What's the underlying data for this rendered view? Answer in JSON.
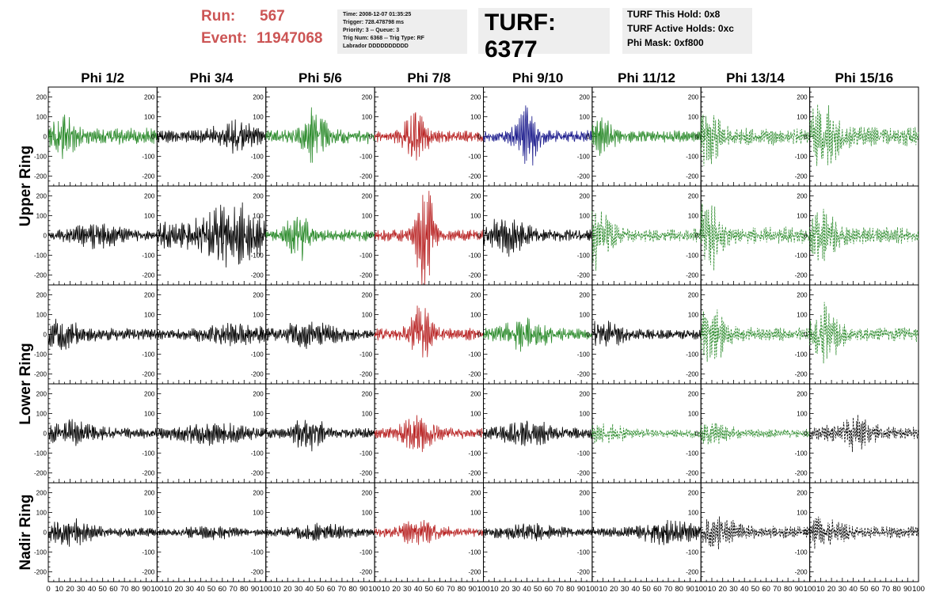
{
  "header": {
    "run_label": "Run:",
    "run_value": "567",
    "event_label": "Event:",
    "event_value": "11947068",
    "info_lines": [
      "Time: 2008-12-07 01:35:25",
      "Trigger: 728.478798 ms",
      "Priority: 3 -- Queue: 3",
      "Trig Num: 6368 -- Trig Type: RF",
      "Labrador DDDDDDDDDD"
    ],
    "turf": "TURF: 6377",
    "hold_lines": [
      "TURF This Hold: 0x8",
      "TURF Active Holds: 0xc",
      "Phi Mask: 0xf800"
    ]
  },
  "colors": {
    "red_label": "#cc5555",
    "green": "#2a8a2a",
    "black": "#000000",
    "red": "#b82222",
    "blue": "#1a1a8c"
  },
  "chart_data": {
    "type": "line",
    "title": "",
    "columns": [
      "Phi 1/2",
      "Phi 3/4",
      "Phi 5/6",
      "Phi 7/8",
      "Phi 9/10",
      "Phi 11/12",
      "Phi 13/14",
      "Phi 15/16"
    ],
    "rows": [
      "Upper Ring",
      "Lower Ring",
      "Nadir Ring"
    ],
    "xlim": [
      0,
      100
    ],
    "ylim": [
      -250,
      250
    ],
    "x_tick_labels": [
      "0",
      "10",
      "20",
      "30",
      "40",
      "50",
      "60",
      "70",
      "80",
      "90",
      "100"
    ],
    "y_tick_labels": [
      "200",
      "100",
      "0",
      "-100",
      "-200"
    ],
    "panels": [
      [
        {
          "color": "green",
          "style": "solid",
          "amplitude": 35,
          "peak_x": 15,
          "peak_amp": 70,
          "width": 10
        },
        {
          "color": "black",
          "style": "solid",
          "amplitude": 25,
          "peak_x": 70,
          "peak_amp": 45,
          "width": 20
        },
        {
          "color": "green",
          "style": "solid",
          "amplitude": 30,
          "peak_x": 45,
          "peak_amp": 95,
          "width": 10
        },
        {
          "color": "red",
          "style": "solid",
          "amplitude": 25,
          "peak_x": 38,
          "peak_amp": 110,
          "width": 10
        },
        {
          "color": "blue",
          "style": "solid",
          "amplitude": 25,
          "peak_x": 40,
          "peak_amp": 120,
          "width": 10
        },
        {
          "color": "green",
          "style": "solid",
          "amplitude": 25,
          "peak_x": 10,
          "peak_amp": 60,
          "width": 10
        },
        {
          "color": "green",
          "style": "dashed",
          "amplitude": 35,
          "peak_x": 5,
          "peak_amp": 100,
          "width": 12
        },
        {
          "color": "green",
          "style": "dashed",
          "amplitude": 40,
          "peak_x": 10,
          "peak_amp": 100,
          "width": 18
        }
      ],
      [
        {
          "color": "black",
          "style": "solid",
          "amplitude": 20,
          "peak_x": 45,
          "peak_amp": 35,
          "width": 25
        },
        {
          "color": "black",
          "style": "solid",
          "amplitude": 55,
          "peak_x": 70,
          "peak_amp": 90,
          "width": 25
        },
        {
          "color": "green",
          "style": "solid",
          "amplitude": 25,
          "peak_x": 30,
          "peak_amp": 100,
          "width": 10
        },
        {
          "color": "red",
          "style": "solid",
          "amplitude": 25,
          "peak_x": 46,
          "peak_amp": 230,
          "width": 8
        },
        {
          "color": "black",
          "style": "solid",
          "amplitude": 25,
          "peak_x": 20,
          "peak_amp": 60,
          "width": 20
        },
        {
          "color": "green",
          "style": "dashed",
          "amplitude": 30,
          "peak_x": 5,
          "peak_amp": 110,
          "width": 12
        },
        {
          "color": "green",
          "style": "dashed",
          "amplitude": 35,
          "peak_x": 5,
          "peak_amp": 150,
          "width": 12
        },
        {
          "color": "green",
          "style": "dashed",
          "amplitude": 35,
          "peak_x": 10,
          "peak_amp": 90,
          "width": 15
        }
      ],
      [
        {
          "color": "black",
          "style": "solid",
          "amplitude": 25,
          "peak_x": 10,
          "peak_amp": 40,
          "width": 20
        },
        {
          "color": "black",
          "style": "solid",
          "amplitude": 20,
          "peak_x": 70,
          "peak_amp": 30,
          "width": 30
        },
        {
          "color": "black",
          "style": "solid",
          "amplitude": 22,
          "peak_x": 40,
          "peak_amp": 35,
          "width": 30
        },
        {
          "color": "red",
          "style": "solid",
          "amplitude": 25,
          "peak_x": 42,
          "peak_amp": 110,
          "width": 10
        },
        {
          "color": "green",
          "style": "solid",
          "amplitude": 25,
          "peak_x": 40,
          "peak_amp": 50,
          "width": 20
        },
        {
          "color": "black",
          "style": "solid",
          "amplitude": 20,
          "peak_x": 10,
          "peak_amp": 40,
          "width": 20
        },
        {
          "color": "green",
          "style": "dashed",
          "amplitude": 30,
          "peak_x": 10,
          "peak_amp": 90,
          "width": 15
        },
        {
          "color": "green",
          "style": "dashed",
          "amplitude": 30,
          "peak_x": 15,
          "peak_amp": 110,
          "width": 12
        }
      ],
      [
        {
          "color": "black",
          "style": "solid",
          "amplitude": 22,
          "peak_x": 20,
          "peak_amp": 35,
          "width": 25
        },
        {
          "color": "black",
          "style": "solid",
          "amplitude": 22,
          "peak_x": 50,
          "peak_amp": 30,
          "width": 30
        },
        {
          "color": "black",
          "style": "solid",
          "amplitude": 22,
          "peak_x": 40,
          "peak_amp": 55,
          "width": 15
        },
        {
          "color": "red",
          "style": "solid",
          "amplitude": 22,
          "peak_x": 40,
          "peak_amp": 60,
          "width": 15
        },
        {
          "color": "black",
          "style": "solid",
          "amplitude": 22,
          "peak_x": 40,
          "peak_amp": 35,
          "width": 25
        },
        {
          "color": "green",
          "style": "dashed",
          "amplitude": 18,
          "peak_x": 10,
          "peak_amp": 30,
          "width": 20
        },
        {
          "color": "green",
          "style": "dashed",
          "amplitude": 18,
          "peak_x": 10,
          "peak_amp": 30,
          "width": 20
        },
        {
          "color": "black",
          "style": "dashed",
          "amplitude": 25,
          "peak_x": 40,
          "peak_amp": 50,
          "width": 20
        }
      ],
      [
        {
          "color": "black",
          "style": "solid",
          "amplitude": 20,
          "peak_x": 20,
          "peak_amp": 40,
          "width": 20
        },
        {
          "color": "black",
          "style": "solid",
          "amplitude": 12,
          "peak_x": 50,
          "peak_amp": 20,
          "width": 30
        },
        {
          "color": "black",
          "style": "solid",
          "amplitude": 15,
          "peak_x": 50,
          "peak_amp": 25,
          "width": 30
        },
        {
          "color": "red",
          "style": "solid",
          "amplitude": 18,
          "peak_x": 40,
          "peak_amp": 35,
          "width": 20
        },
        {
          "color": "black",
          "style": "solid",
          "amplitude": 15,
          "peak_x": 40,
          "peak_amp": 25,
          "width": 30
        },
        {
          "color": "black",
          "style": "solid",
          "amplitude": 20,
          "peak_x": 70,
          "peak_amp": 40,
          "width": 25
        },
        {
          "color": "black",
          "style": "dashed",
          "amplitude": 25,
          "peak_x": 15,
          "peak_amp": 50,
          "width": 20
        },
        {
          "color": "black",
          "style": "dashed",
          "amplitude": 25,
          "peak_x": 10,
          "peak_amp": 45,
          "width": 20
        }
      ]
    ]
  }
}
